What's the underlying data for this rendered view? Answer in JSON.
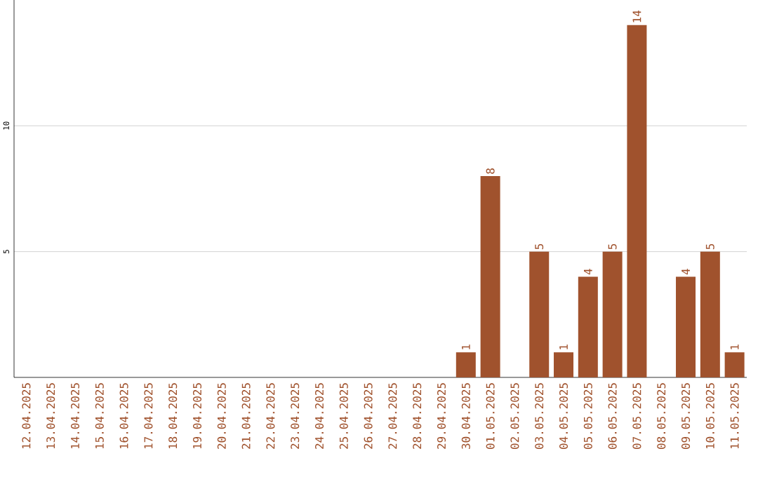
{
  "chart_data": {
    "type": "bar",
    "categories": [
      "12.04.2025",
      "13.04.2025",
      "14.04.2025",
      "15.04.2025",
      "16.04.2025",
      "17.04.2025",
      "18.04.2025",
      "19.04.2025",
      "20.04.2025",
      "21.04.2025",
      "22.04.2025",
      "23.04.2025",
      "24.04.2025",
      "25.04.2025",
      "26.04.2025",
      "27.04.2025",
      "28.04.2025",
      "29.04.2025",
      "30.04.2025",
      "01.05.2025",
      "02.05.2025",
      "03.05.2025",
      "04.05.2025",
      "05.05.2025",
      "06.05.2025",
      "07.05.2025",
      "08.05.2025",
      "09.05.2025",
      "10.05.2025",
      "11.05.2025"
    ],
    "values": [
      0,
      0,
      0,
      0,
      0,
      0,
      0,
      0,
      0,
      0,
      0,
      0,
      0,
      0,
      0,
      0,
      0,
      0,
      1,
      8,
      0,
      5,
      1,
      4,
      5,
      14,
      0,
      4,
      5,
      1
    ],
    "value_labels": [
      null,
      null,
      null,
      null,
      null,
      null,
      null,
      null,
      null,
      null,
      null,
      null,
      null,
      null,
      null,
      null,
      null,
      null,
      "1",
      "8",
      null,
      "5",
      "1",
      "4",
      "5",
      "14",
      null,
      "4",
      "5",
      "1"
    ],
    "color": "#a0522d",
    "ylim": [
      0,
      15
    ],
    "yticks": [
      5,
      10
    ],
    "grid": "y"
  }
}
